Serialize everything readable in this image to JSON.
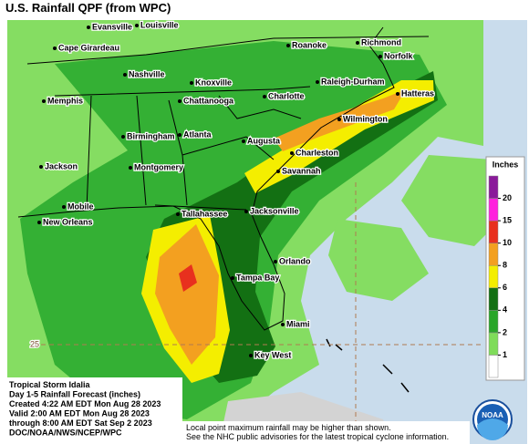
{
  "title": "U.S. Rainfall QPF (from WPC)",
  "cities": [
    "Evansville",
    "Louisville",
    "Cape Girardeau",
    "Roanoke",
    "Richmond",
    "Norfolk",
    "Nashville",
    "Knoxville",
    "Raleigh-Durham",
    "Memphis",
    "Chattanooga",
    "Charlotte",
    "Hatteras",
    "Wilmington",
    "Birmingham",
    "Atlanta",
    "Augusta",
    "Charleston",
    "Jackson",
    "Montgomery",
    "Savannah",
    "Mobile",
    "New Orleans",
    "Tallahassee",
    "Jacksonville",
    "Orlando",
    "Tampa Bay",
    "Miami",
    "Key West"
  ],
  "latitude_label": "25",
  "legend": {
    "title": "Inches",
    "ticks": [
      1,
      2,
      4,
      6,
      8,
      10,
      15,
      20
    ],
    "colors": [
      "#ffffff",
      "#7fdc5a",
      "#2aa62a",
      "#137013",
      "#f4ee00",
      "#f3a020",
      "#e8301e",
      "#ff22dd",
      "#8a1a9a"
    ]
  },
  "info": [
    "Tropical Storm Idalia",
    "Day 1-5 Rainfall Forecast (inches)",
    "Created 4:22 AM EDT Mon Aug 28 2023",
    "Valid 2:00 AM EDT Mon Aug 28 2023",
    "through 8:00 AM EDT Sat Sep 2 2023",
    "DOC/NOAA/NWS/NCEP/WPC"
  ],
  "note": [
    "Local point maximum rainfall may be higher than shown.",
    "See the NHC public advisories for the latest tropical cyclone information."
  ],
  "logo": "NOAA"
}
